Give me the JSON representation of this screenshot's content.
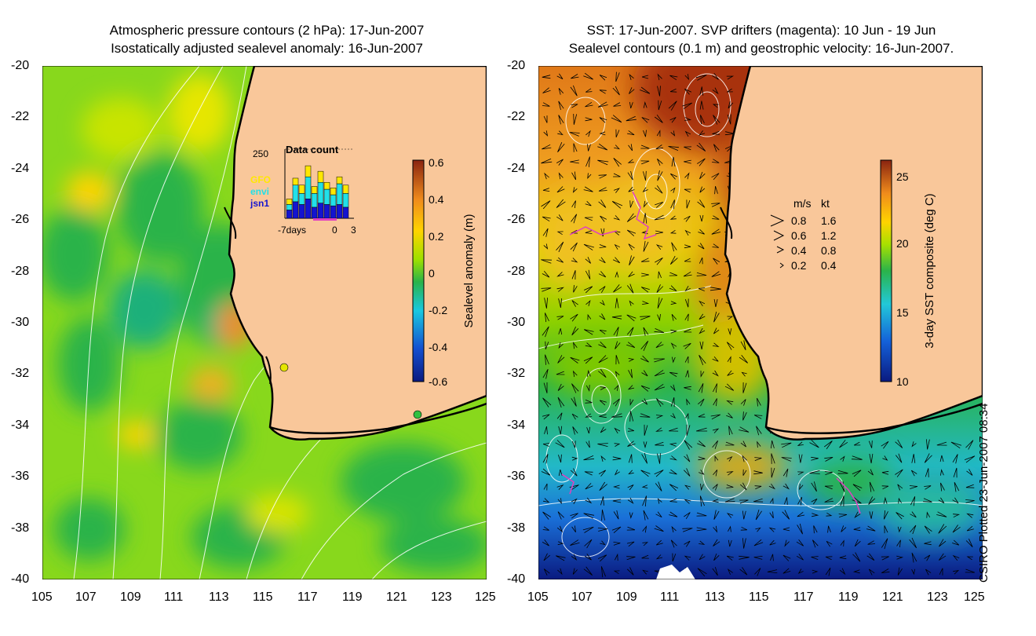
{
  "left_panel": {
    "title_line1": "Atmospheric pressure contours (2 hPa): 17-Jun-2007",
    "title_line2": "Isostatically adjusted sealevel anomaly: 16-Jun-2007",
    "colorbar": {
      "label": "Sealevel anomaly (m)",
      "ticks": [
        "0.6",
        "0.4",
        "0.2",
        "0",
        "-0.2",
        "-0.4",
        "-0.6"
      ],
      "range": [
        -0.6,
        0.6
      ],
      "colors": [
        "#0a1a80",
        "#1450d0",
        "#19c8e0",
        "#2ab34a",
        "#9ce000",
        "#ffd400",
        "#f08c1c",
        "#8a2410"
      ]
    },
    "inset": {
      "title": "Data count",
      "ymax_label": "250",
      "ymax": 250,
      "x_labels": [
        "-7days",
        "0",
        "3"
      ],
      "legend": [
        {
          "name": "GFO",
          "color": "#ffe800"
        },
        {
          "name": "envi",
          "color": "#22e0e8"
        },
        {
          "name": "jsn1",
          "color": "#1414d0"
        }
      ],
      "bars": [
        {
          "jsn1": 30,
          "envi": 20,
          "gfo": 20
        },
        {
          "jsn1": 60,
          "envi": 60,
          "gfo": 25
        },
        {
          "jsn1": 50,
          "envi": 40,
          "gfo": 30
        },
        {
          "jsn1": 70,
          "envi": 80,
          "gfo": 40
        },
        {
          "jsn1": 40,
          "envi": 50,
          "gfo": 25
        },
        {
          "jsn1": 55,
          "envi": 75,
          "gfo": 40
        },
        {
          "jsn1": 50,
          "envi": 55,
          "gfo": 25
        },
        {
          "jsn1": 45,
          "envi": 40,
          "gfo": 25
        },
        {
          "jsn1": 50,
          "envi": 75,
          "gfo": 25
        },
        {
          "jsn1": 40,
          "envi": 50,
          "gfo": 30
        }
      ]
    }
  },
  "right_panel": {
    "title_line1": "SST: 17-Jun-2007. SVP drifters (magenta): 10 Jun - 19 Jun",
    "title_line2": "Sealevel contours (0.1 m) and geostrophic velocity: 16-Jun-2007.",
    "colorbar": {
      "label": "3-day SST composite (deg C)",
      "ticks": [
        "25",
        "20",
        "15",
        "10"
      ],
      "range": [
        10,
        26
      ],
      "colors": [
        "#0a1a80",
        "#1460d8",
        "#22c8d8",
        "#2ab34a",
        "#a8e000",
        "#ffd400",
        "#f08c1c",
        "#8a2410"
      ]
    },
    "velocity_legend": {
      "header_ms": "m/s",
      "header_kt": "kt",
      "rows": [
        {
          "ms": "0.8",
          "kt": "1.6"
        },
        {
          "ms": "0.6",
          "kt": "1.2"
        },
        {
          "ms": "0.4",
          "kt": "0.8"
        },
        {
          "ms": "0.2",
          "kt": "0.4"
        }
      ]
    }
  },
  "axes": {
    "lat_labels": [
      "-20",
      "-22",
      "-24",
      "-26",
      "-28",
      "-30",
      "-32",
      "-34",
      "-36",
      "-38",
      "-40"
    ],
    "lon_labels": [
      "105",
      "107",
      "109",
      "111",
      "113",
      "115",
      "117",
      "119",
      "121",
      "123",
      "125"
    ],
    "lat_range": [
      -40,
      -20
    ],
    "lon_range": [
      105,
      125
    ]
  },
  "credit": "CSIRO Plotted 23-Jun-2007 08:34",
  "colors": {
    "land": "#f9c79a",
    "contour": "#ffffff",
    "coast": "#000000",
    "drifter": "#e040c0"
  }
}
